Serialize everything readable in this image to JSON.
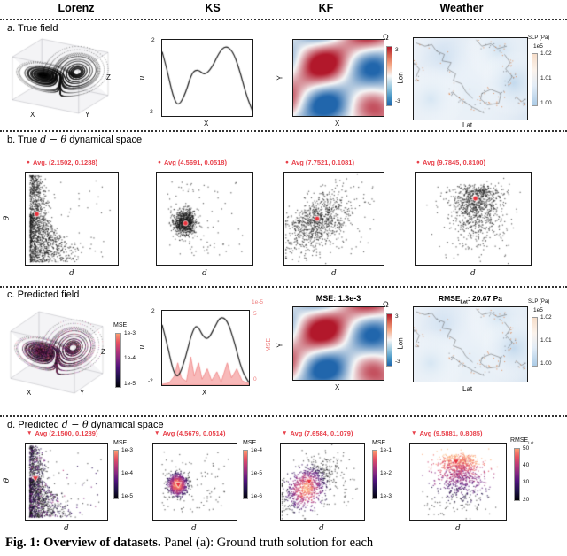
{
  "icons": {
    "avg_dot": "●",
    "avg_triangle": "▼"
  },
  "colors": {
    "legend_red": "#e8414b",
    "marker_red": "#e8323c",
    "mse_pink": "#ee7d7d",
    "omega_pos": "#b2182b",
    "omega_neg": "#2166ac"
  },
  "header": {
    "columns": [
      "Lorenz",
      "KS",
      "KF",
      "Weather"
    ]
  },
  "row_a": {
    "label": "a. True field",
    "lorenz": {
      "xlabel": "X",
      "ylabel": "Y",
      "zlabel": "Z"
    },
    "ks": {
      "ylabel": "u",
      "tick_top": "2",
      "tick_bottom": "-2",
      "xlabel": "X"
    },
    "kf": {
      "ylabel": "Y",
      "xlabel": "X",
      "cbar": {
        "title": "Ω",
        "tick_top": "3",
        "tick_bottom": "-3"
      }
    },
    "weather": {
      "ylabel": "Lon",
      "xlabel": "Lat",
      "cbar": {
        "title": "SLP (Pa)",
        "exp": "1e5",
        "ticks": [
          "1.02",
          "1.01",
          "1.00"
        ]
      }
    }
  },
  "row_b": {
    "label_prefix": "b. True ",
    "label_math": "d − θ",
    "label_suffix": " dynamical space",
    "panels": [
      {
        "legend": "Avg. (2.1502, 0.1288)",
        "ylabel": "θ",
        "xlabel": "d"
      },
      {
        "legend": "Avg (4.5691, 0.0518)",
        "xlabel": "d"
      },
      {
        "legend": "Avg (7.7521, 0.1081)",
        "xlabel": "d"
      },
      {
        "legend": "Avg (9.7845, 0.8100)",
        "xlabel": "d"
      }
    ]
  },
  "row_c": {
    "label": "c. Predicted field",
    "lorenz": {
      "xlabel": "X",
      "ylabel": "Y",
      "zlabel": "Z",
      "cbar": {
        "title": "MSE",
        "ticks": [
          "1e-3",
          "1e-4",
          "1e-5"
        ]
      }
    },
    "ks": {
      "ylabel": "u",
      "tick_top": "2",
      "tick_bottom": "-2",
      "xlabel": "X",
      "right": {
        "exp": "1e-5",
        "tick_top": "5",
        "tick_bottom": "0",
        "label": "MSE"
      }
    },
    "kf": {
      "title": "MSE: 1.3e-3",
      "ylabel": "Y",
      "xlabel": "X",
      "cbar": {
        "title": "Ω",
        "tick_top": "3",
        "tick_bottom": "-3"
      }
    },
    "weather": {
      "title_prefix": "RMSE",
      "title_sub": "Lat",
      "title_suffix": ": 20.67 Pa",
      "ylabel": "Lon",
      "xlabel": "Lat",
      "cbar": {
        "title": "SLP (Pa)",
        "exp": "1e5",
        "ticks": [
          "1.02",
          "1.01",
          "1.00"
        ]
      }
    }
  },
  "row_d": {
    "label_prefix": "d. Predicted ",
    "label_math": "d − θ",
    "label_suffix": " dynamical space",
    "panels": [
      {
        "legend": "Avg (2.1500, 0.1289)",
        "ylabel": "θ",
        "xlabel": "d",
        "cbar": {
          "title": "MSE",
          "ticks": [
            "1e-3",
            "1e-4",
            "1e-5"
          ]
        }
      },
      {
        "legend": "Avg (4.5679, 0.0514)",
        "xlabel": "d",
        "cbar": {
          "title": "MSE",
          "ticks": [
            "1e-4",
            "1e-5",
            "1e-6"
          ]
        }
      },
      {
        "legend": "Avg (7.6584, 0.1079)",
        "xlabel": "d",
        "cbar": {
          "title": "MSE",
          "ticks": [
            "1e-1",
            "1e-2",
            "1e-3"
          ]
        }
      },
      {
        "legend": "Avg (9.5881, 0.8085)",
        "xlabel": "d",
        "cbar": {
          "title_prefix": "RMSE",
          "title_sub": "Lat",
          "ticks": [
            "50",
            "40",
            "30",
            "20"
          ]
        }
      }
    ]
  },
  "caption": {
    "bold": "Fig. 1: Overview of datasets.",
    "text": " Panel (a): Ground truth solution for each"
  },
  "chart_data": [
    {
      "id": "lorenz_true",
      "type": "scatter",
      "desc": "Lorenz attractor trajectory, sigma=10 rho=28 beta=8/3",
      "axes": [
        "X",
        "Y",
        "Z"
      ]
    },
    {
      "id": "lorenz_pred",
      "type": "scatter",
      "desc": "Predicted Lorenz attractor colored by MSE 1e-5..1e-3",
      "axes": [
        "X",
        "Y",
        "Z"
      ]
    },
    {
      "id": "ks_true",
      "type": "line",
      "ylim": [
        -2,
        2
      ],
      "xlabel": "X",
      "ylabel": "u",
      "points": [
        [
          0,
          1.55
        ],
        [
          0.05,
          0.6
        ],
        [
          0.12,
          -1.1
        ],
        [
          0.18,
          -1.72
        ],
        [
          0.26,
          -0.9
        ],
        [
          0.33,
          0.35
        ],
        [
          0.4,
          0.5
        ],
        [
          0.47,
          0.15
        ],
        [
          0.55,
          0.6
        ],
        [
          0.63,
          1.5
        ],
        [
          0.7,
          1.92
        ],
        [
          0.78,
          1.6
        ],
        [
          0.85,
          0.6
        ],
        [
          0.93,
          -1.0
        ],
        [
          1,
          -1.95
        ]
      ]
    },
    {
      "id": "ks_pred",
      "type": "line",
      "ylim": [
        -2,
        2
      ],
      "xlabel": "X",
      "ylabel": "u",
      "points": [
        [
          0,
          1.4
        ],
        [
          0.06,
          0.2
        ],
        [
          0.13,
          -1.5
        ],
        [
          0.19,
          -1.8
        ],
        [
          0.27,
          -0.6
        ],
        [
          0.34,
          0.9
        ],
        [
          0.4,
          1.45
        ],
        [
          0.47,
          0.7
        ],
        [
          0.53,
          0.5
        ],
        [
          0.6,
          1.2
        ],
        [
          0.67,
          1.9
        ],
        [
          0.75,
          1.7
        ],
        [
          0.83,
          0.4
        ],
        [
          0.92,
          -1.4
        ],
        [
          1,
          -2.1
        ]
      ],
      "mse_area": [
        [
          0,
          0.01
        ],
        [
          0.08,
          0.03
        ],
        [
          0.14,
          0.12
        ],
        [
          0.18,
          0.3
        ],
        [
          0.22,
          0.1
        ],
        [
          0.28,
          0.05
        ],
        [
          0.33,
          0.38
        ],
        [
          0.37,
          0.12
        ],
        [
          0.42,
          0.3
        ],
        [
          0.46,
          0.08
        ],
        [
          0.52,
          0.22
        ],
        [
          0.57,
          0.06
        ],
        [
          0.63,
          0.18
        ],
        [
          0.68,
          0.04
        ],
        [
          0.75,
          0.3
        ],
        [
          0.8,
          0.1
        ],
        [
          0.86,
          0.22
        ],
        [
          0.92,
          0.06
        ],
        [
          1,
          0.02
        ]
      ]
    },
    {
      "id": "kf_field",
      "type": "heatmap",
      "clim": [
        -3,
        3
      ],
      "cmap": "RdBu_r",
      "axes": [
        "X",
        "Y"
      ]
    },
    {
      "id": "weather_field",
      "type": "heatmap",
      "desc": "Sea level pressure map over SE Asia",
      "clim": [
        100000,
        102000
      ],
      "axes": [
        "Lat",
        "Lon"
      ]
    },
    {
      "id": "b1",
      "type": "scatter",
      "kind": "wedge",
      "n": 1500,
      "marker": [
        0.12,
        0.45
      ],
      "colored": false,
      "seed": 11,
      "avg": [
        2.1502,
        0.1288
      ]
    },
    {
      "id": "b2",
      "type": "scatter",
      "kind": "blob",
      "n": 950,
      "marker": [
        0.3,
        0.55
      ],
      "colored": false,
      "seed": 22,
      "avg": [
        4.5691,
        0.0518
      ]
    },
    {
      "id": "b3",
      "type": "scatter",
      "kind": "diag",
      "n": 950,
      "marker": [
        0.33,
        0.5
      ],
      "colored": false,
      "seed": 33,
      "avg": [
        7.7521,
        0.1081
      ]
    },
    {
      "id": "b4",
      "type": "scatter",
      "kind": "tall",
      "n": 1000,
      "marker": [
        0.52,
        0.28
      ],
      "colored": false,
      "seed": 44,
      "avg": [
        9.7845,
        0.81
      ]
    },
    {
      "id": "d1",
      "type": "scatter",
      "kind": "wedge",
      "n": 1500,
      "marker": [
        0.12,
        0.46
      ],
      "colored": true,
      "seed": 55,
      "avg": [
        2.15,
        0.1289
      ]
    },
    {
      "id": "d2",
      "type": "scatter",
      "kind": "blob",
      "n": 950,
      "marker": [
        0.3,
        0.54
      ],
      "colored": true,
      "seed": 66,
      "avg": [
        4.5679,
        0.0514
      ]
    },
    {
      "id": "d3",
      "type": "scatter",
      "kind": "diag",
      "n": 950,
      "marker": [
        0.34,
        0.5
      ],
      "colored": true,
      "seed": 77,
      "avg": [
        7.6584,
        0.1079
      ]
    },
    {
      "id": "d4",
      "type": "scatter",
      "kind": "tall",
      "n": 1000,
      "marker": [
        0.48,
        0.24
      ],
      "colored": true,
      "seed": 88,
      "avg": [
        9.5881,
        0.8085
      ]
    }
  ]
}
